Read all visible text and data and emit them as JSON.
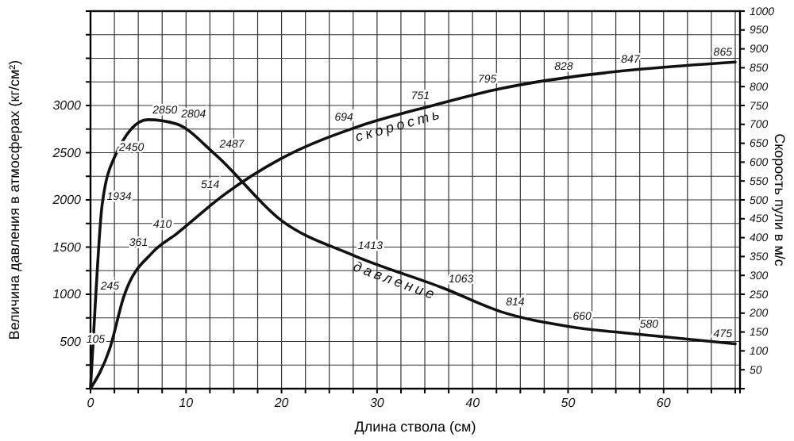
{
  "chart_data": {
    "type": "line",
    "xlabel": "Длина ствола (см)",
    "ylabel": "Величина давления в атмосферах (кг/см²)",
    "y2label": "Скорость пули в м/с",
    "xlim": [
      0,
      68
    ],
    "xticks": [
      0,
      {
        "value": 2.5,
        "label": null
      },
      {
        "value": 5,
        "label": null
      },
      {
        "value": 7.5,
        "label": null
      },
      10,
      {
        "value": 12.5,
        "label": null
      },
      {
        "value": 15,
        "label": null
      },
      {
        "value": 17.5,
        "label": null
      },
      20,
      {
        "value": 22.5,
        "label": null
      },
      {
        "value": 25,
        "label": null
      },
      {
        "value": 27.5,
        "label": null
      },
      30,
      {
        "value": 32.5,
        "label": null
      },
      {
        "value": 35,
        "label": null
      },
      {
        "value": 37.5,
        "label": null
      },
      40,
      {
        "value": 42.5,
        "label": null
      },
      {
        "value": 45,
        "label": null
      },
      {
        "value": 47.5,
        "label": null
      },
      50,
      {
        "value": 52.5,
        "label": null
      },
      {
        "value": 55,
        "label": null
      },
      {
        "value": 57.5,
        "label": null
      },
      60,
      {
        "value": 62.5,
        "label": null
      },
      {
        "value": 65,
        "label": null
      },
      {
        "value": 67.5,
        "label": null
      }
    ],
    "ylim": [
      0,
      4000
    ],
    "yticks": [
      {
        "value": 0,
        "label": null
      },
      {
        "value": 250,
        "label": null
      },
      500,
      {
        "value": 750,
        "label": null
      },
      1000,
      {
        "value": 1250,
        "label": null
      },
      1500,
      {
        "value": 1750,
        "label": null
      },
      2000,
      {
        "value": 2250,
        "label": null
      },
      2500,
      {
        "value": 2750,
        "label": null
      },
      3000,
      {
        "value": 3250,
        "label": null
      },
      {
        "value": 3500,
        "label": null
      },
      {
        "value": 3750,
        "label": null
      },
      {
        "value": 4000,
        "label": null
      }
    ],
    "y2lim": [
      0,
      1000
    ],
    "y2ticks": [
      50,
      100,
      150,
      200,
      250,
      300,
      350,
      400,
      450,
      500,
      550,
      600,
      650,
      700,
      750,
      800,
      850,
      900,
      950,
      1000
    ],
    "grid": true,
    "marker": "none",
    "line_style": "solid",
    "series": [
      {
        "name": "давление",
        "color": "#111111",
        "x": [
          0,
          0.5,
          1.2,
          2.5,
          6,
          9,
          13,
          20,
          27.5,
          37,
          43,
          50,
          57,
          67.5
        ],
        "values": [
          0,
          900,
          1934,
          2450,
          2850,
          2804,
          2487,
          1780,
          1413,
          1063,
          814,
          660,
          580,
          475
        ],
        "value_labels": [
          null,
          null,
          "1934",
          "2450",
          "2850",
          "2804",
          "2487",
          null,
          "1413",
          "1063",
          "814",
          "660",
          "580",
          "475"
        ]
      },
      {
        "name": "скорость",
        "color": "#111111",
        "axis": "y2",
        "x": [
          0,
          2,
          3.5,
          6.5,
          9,
          14,
          20,
          28,
          36,
          43,
          51,
          58,
          67.5
        ],
        "values": [
          0,
          105,
          245,
          361,
          410,
          514,
          610,
          694,
          751,
          795,
          828,
          847,
          865
        ],
        "value_labels": [
          null,
          "105",
          "245",
          "361",
          "410",
          "514",
          null,
          "694",
          "751",
          "795",
          "828",
          "847",
          "865"
        ]
      }
    ]
  }
}
